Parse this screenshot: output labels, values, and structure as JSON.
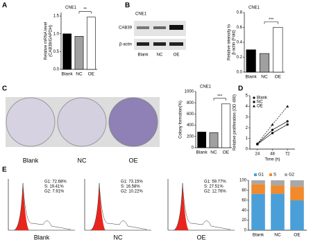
{
  "panels": [
    "A",
    "B",
    "C",
    "D",
    "E"
  ],
  "blot": {
    "title": "CNE1",
    "rows": [
      "CAB39",
      "β-actin"
    ],
    "lanes": [
      "Blank",
      "NC",
      "OE"
    ]
  },
  "colony": {
    "labels": [
      "Blank",
      "NC",
      "OE"
    ]
  },
  "flow": [
    {
      "label": "Blank",
      "lines": [
        "G1:  72.68%",
        "S:  19.41%",
        "G2:  7.91%"
      ]
    },
    {
      "label": "NC",
      "lines": [
        "G1:  73.15%",
        "S:  16.58%",
        "G2:  10.22%"
      ]
    },
    {
      "label": "OE",
      "lines": [
        "G1:  59.77%",
        "S:  27.51%",
        "G2:  12.76%"
      ]
    }
  ],
  "chart_data": [
    {
      "type": "bar",
      "title": "CNE1",
      "ylabel": [
        "Relative mRNA level",
        "(CAB39/GAPDH)"
      ],
      "categories": [
        "Blank",
        "NC",
        "OE"
      ],
      "values": [
        1.0,
        0.93,
        1.47
      ],
      "colors": [
        "#000000",
        "#a0a0a0",
        "#ffffff"
      ],
      "ylim": [
        0,
        1.6
      ],
      "yticks": [
        {
          "value": 0,
          "label": "0.0"
        },
        {
          "value": 0.5,
          "label": "0.5"
        },
        {
          "value": 1,
          "label": "1.0"
        },
        {
          "value": 1.5,
          "label": "1.5"
        }
      ],
      "significance": "**"
    },
    {
      "type": "bar",
      "title": "CNE1",
      "ylabel": [
        "Relative intensity to",
        "β-actin (Fold)"
      ],
      "categories": [
        "Blank",
        "NC",
        "OE"
      ],
      "values": [
        0.3,
        0.25,
        0.6
      ],
      "colors": [
        "#000000",
        "#a0a0a0",
        "#ffffff"
      ],
      "ylim": [
        0,
        0.8
      ],
      "yticks": [
        {
          "value": 0,
          "label": "0.0"
        },
        {
          "value": 0.2,
          "label": "0.2"
        },
        {
          "value": 0.4,
          "label": "0.4"
        },
        {
          "value": 0.6,
          "label": "0.6"
        },
        {
          "value": 0.8,
          "label": "0.8"
        }
      ],
      "significance": "***"
    },
    {
      "type": "bar",
      "title": "CNE1",
      "ylabel": [
        "Colony formation(%)"
      ],
      "categories": [
        "Blank",
        "NC",
        "OE"
      ],
      "values": [
        280,
        270,
        780
      ],
      "colors": [
        "#000000",
        "#a0a0a0",
        "#ffffff"
      ],
      "ylim": [
        0,
        1000
      ],
      "yticks": [
        0,
        200,
        400,
        600,
        800,
        1000
      ],
      "significance": "***"
    },
    {
      "type": "line",
      "ylabel": [
        "Relative proliferation (OD 490)"
      ],
      "xlabel": "Time (h)",
      "x": [
        24,
        48,
        72
      ],
      "xlim": [
        12,
        84
      ],
      "xticks": [
        24,
        48,
        72
      ],
      "ylim": [
        0,
        5
      ],
      "yticks": [
        0,
        1,
        2,
        3,
        4,
        5
      ],
      "series": [
        {
          "name": "Blank",
          "color": "#000000",
          "values": [
            0.5,
            1.8,
            2.6
          ]
        },
        {
          "name": "NC",
          "color": "#000000",
          "values": [
            0.45,
            1.5,
            2.3
          ]
        },
        {
          "name": "OE",
          "color": "#000000",
          "values": [
            0.5,
            2.3,
            4.0
          ]
        }
      ]
    },
    {
      "type": "stacked",
      "categories": [
        "Blank",
        "NC",
        "OE"
      ],
      "ylim": [
        0,
        100
      ],
      "yticks": [
        0,
        20,
        40,
        60,
        80,
        100
      ],
      "series": [
        {
          "name": "G1",
          "color": "#4a9fd8",
          "values": [
            72.68,
            73.15,
            59.77
          ]
        },
        {
          "name": "S",
          "color": "#f08a2c",
          "values": [
            19.41,
            16.58,
            27.51
          ]
        },
        {
          "name": "G2",
          "color": "#a8a8a8",
          "values": [
            7.91,
            10.22,
            12.76
          ]
        }
      ]
    }
  ]
}
